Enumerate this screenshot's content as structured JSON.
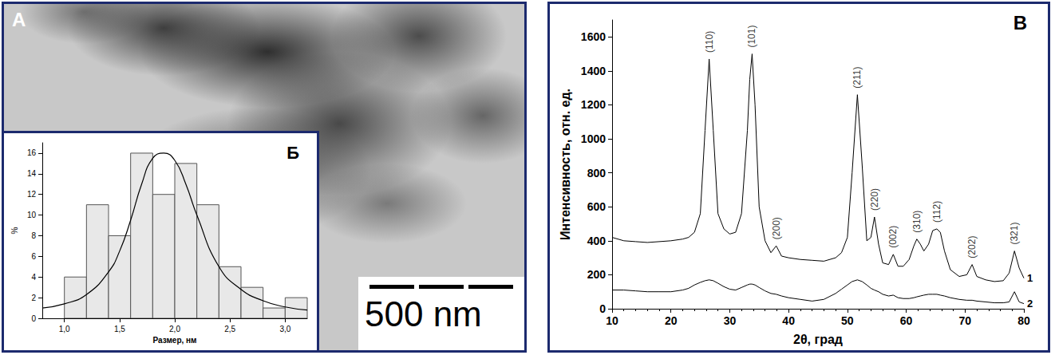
{
  "image": {
    "label": "А",
    "scale_bar": "500 nm"
  },
  "chart_data": [
    {
      "type": "histogram",
      "title": "Б",
      "bins": [
        1.0,
        1.2,
        1.4,
        1.6,
        1.8,
        2.0,
        2.2,
        2.4,
        2.6,
        2.8,
        3.0,
        3.2
      ],
      "values": [
        4,
        11,
        8,
        16,
        12,
        15,
        11,
        5,
        3,
        1,
        2
      ],
      "color": "#e8e8e8",
      "curve": {
        "x": [
          0.8,
          1.0,
          1.2,
          1.4,
          1.5,
          1.6,
          1.7,
          1.8,
          1.9,
          2.0,
          2.1,
          2.2,
          2.4,
          2.6,
          2.8,
          3.0,
          3.2
        ],
        "values": [
          1.0,
          1.4,
          2.3,
          4.5,
          6.5,
          9.5,
          13,
          15.5,
          16,
          15.3,
          13,
          10,
          5,
          2.8,
          1.7,
          1.1,
          0.8
        ],
        "color": "#000000"
      },
      "xlabel": "Размер, нм",
      "ylabel": "%",
      "xlim": [
        0.8,
        3.2
      ],
      "xticks": [
        {
          "value": 1.0,
          "label": "1,0"
        },
        {
          "value": 1.5,
          "label": "1,5"
        },
        {
          "value": 2.0,
          "label": "2,0"
        },
        {
          "value": 2.5,
          "label": "2,5"
        },
        {
          "value": 3.0,
          "label": "3,0"
        }
      ],
      "ylim": [
        0,
        17
      ],
      "yticks": [
        0,
        2,
        4,
        6,
        8,
        10,
        12,
        14,
        16
      ]
    },
    {
      "type": "line",
      "title": "В",
      "x": [
        10,
        12,
        14,
        16,
        18,
        20,
        22,
        23,
        24,
        25,
        25.8,
        26.5,
        27.2,
        28,
        29,
        30,
        31,
        32,
        33,
        33.4,
        33.8,
        34.3,
        35,
        36,
        37,
        37.9,
        38.8,
        40,
        42,
        44,
        46,
        48,
        49,
        50,
        50.8,
        51.7,
        52.5,
        53.3,
        54,
        54.6,
        55.3,
        56,
        57,
        57.8,
        58.6,
        59.5,
        60.5,
        61.3,
        61.8,
        62.4,
        63,
        63.8,
        64.5,
        65.2,
        65.8,
        66.5,
        67.5,
        69,
        70.3,
        71.2,
        72,
        73.5,
        75,
        76.5,
        77.5,
        78.4,
        79.2,
        80
      ],
      "series": [
        {
          "name": "1",
          "color": "#000000",
          "values": [
            420,
            400,
            395,
            390,
            395,
            400,
            410,
            420,
            450,
            560,
            1050,
            1470,
            1050,
            560,
            470,
            440,
            450,
            560,
            1050,
            1350,
            1500,
            1200,
            600,
            400,
            330,
            370,
            310,
            300,
            290,
            285,
            280,
            300,
            330,
            420,
            800,
            1260,
            850,
            400,
            420,
            540,
            380,
            270,
            260,
            320,
            250,
            250,
            290,
            370,
            410,
            380,
            340,
            380,
            460,
            470,
            450,
            340,
            230,
            190,
            200,
            260,
            190,
            170,
            160,
            165,
            210,
            340,
            240,
            180
          ]
        },
        {
          "name": "2",
          "color": "#000000",
          "values": [
            110,
            110,
            105,
            100,
            100,
            100,
            110,
            120,
            140,
            155,
            165,
            170,
            165,
            150,
            130,
            115,
            110,
            125,
            140,
            145,
            145,
            140,
            125,
            105,
            90,
            85,
            75,
            65,
            55,
            45,
            55,
            90,
            115,
            140,
            160,
            170,
            160,
            140,
            120,
            110,
            100,
            85,
            75,
            80,
            65,
            60,
            60,
            65,
            70,
            75,
            80,
            85,
            85,
            85,
            80,
            75,
            65,
            55,
            50,
            50,
            45,
            40,
            35,
            35,
            40,
            100,
            40,
            30
          ]
        }
      ],
      "annotations": [
        {
          "text": "(110)",
          "x": 26.5
        },
        {
          "text": "(101)",
          "x": 33.8
        },
        {
          "text": "(200)",
          "x": 37.9
        },
        {
          "text": "(211)",
          "x": 51.7
        },
        {
          "text": "(220)",
          "x": 54.6
        },
        {
          "text": "(002)",
          "x": 57.8
        },
        {
          "text": "(310)",
          "x": 61.8
        },
        {
          "text": "(112)",
          "x": 65.2
        },
        {
          "text": "(202)",
          "x": 71.2
        },
        {
          "text": "(321)",
          "x": 78.4
        }
      ],
      "xlabel": "2θ, град",
      "ylabel": "Интенсивность, отн. ед.",
      "xlim": [
        10,
        80
      ],
      "xticks": [
        10,
        20,
        30,
        40,
        50,
        60,
        70,
        80
      ],
      "ylim": [
        0,
        1700
      ],
      "yticks": [
        0,
        200,
        400,
        600,
        800,
        1000,
        1200,
        1400,
        1600
      ]
    }
  ]
}
